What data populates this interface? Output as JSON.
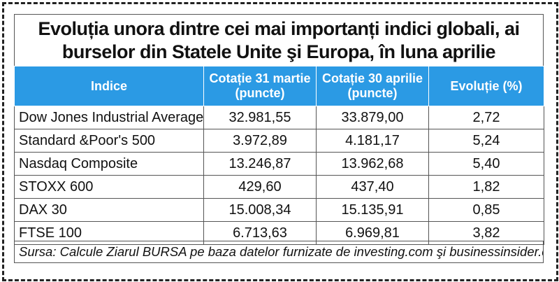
{
  "title": {
    "line1": "Evoluția unora dintre cei mai importanți indici globali, ai",
    "line2": "burselor din Statele Unite şi Europa, în luna aprilie"
  },
  "chart_data": {
    "type": "table",
    "columns": [
      "Indice",
      "Cotație 31 martie (puncte)",
      "Cotație 30 aprilie (puncte)",
      "Evoluție (%)"
    ],
    "header_lines": [
      [
        "Indice"
      ],
      [
        "Cotație 31 martie",
        "(puncte)"
      ],
      [
        "Cotație 30 aprilie",
        "(puncte)"
      ],
      [
        "Evoluție (%)"
      ]
    ],
    "rows": [
      [
        "Dow Jones Industrial Average",
        "32.981,55",
        "33.879,00",
        "2,72"
      ],
      [
        "Standard &Poor's 500",
        "3.972,89",
        "4.181,17",
        "5,24"
      ],
      [
        "Nasdaq Composite",
        "13.246,87",
        "13.962,68",
        "5,40"
      ],
      [
        "STOXX 600",
        "429,60",
        "437,40",
        "1,82"
      ],
      [
        "DAX 30",
        "15.008,34",
        "15.135,91",
        "0,85"
      ],
      [
        "FTSE 100",
        "6.713,63",
        "6.969,81",
        "3,82"
      ]
    ]
  },
  "source": "Sursa: Calcule Ziarul BURSA pe baza datelor furnizate de investing.com şi businessinsider.com.",
  "colors": {
    "header_bg": "#2b9ae4",
    "header_text": "#ffffff"
  }
}
